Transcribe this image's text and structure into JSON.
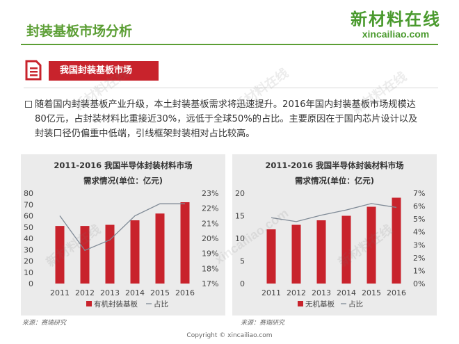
{
  "header": {
    "title": "封装基板市场分析",
    "logo_cn": "新材料在线",
    "logo_en": "xincailiao.com",
    "accent": "#5b9e34"
  },
  "section": {
    "title": "我国封装基板市场",
    "icon": "document-list-icon",
    "color": "#c8232c"
  },
  "paragraph": {
    "text": "随着国内封装基板产业升级，本土封装基板需求将迅速提升。2016年国内封装基板市场规模达",
    "lines": [
      "80亿元，占封装材料比重接近30%，远低于全球50%的占比。主要原因在于国内芯片设计以及",
      "封装口径仍偏重中低端，引线框架封装相对占比较高。"
    ]
  },
  "chart_data": [
    {
      "type": "bar",
      "title": "2011-2016 我国半导体封装材料市场",
      "subtitle": "需求情况(单位：亿元)",
      "categories": [
        "2011",
        "2012",
        "2013",
        "2014",
        "2015",
        "2016"
      ],
      "series": [
        {
          "name": "有机封装基板",
          "type": "bar",
          "axis": "left",
          "color": "#c8232c",
          "values": [
            51,
            51,
            52,
            56,
            62,
            72
          ]
        },
        {
          "name": "占比",
          "type": "line",
          "axis": "right",
          "color": "#7f8a96",
          "values": [
            21.5,
            19.2,
            19.9,
            21.5,
            22.3,
            22.3
          ]
        }
      ],
      "left_ticks": [
        "0",
        "10",
        "20",
        "30",
        "40",
        "50",
        "60",
        "70",
        "80"
      ],
      "right_ticks": [
        "17%",
        "18%",
        "19%",
        "20%",
        "21%",
        "22%",
        "23%"
      ],
      "ylim": [
        0,
        80
      ],
      "y2lim": [
        17,
        23
      ],
      "legend_position": "bottom",
      "legend_labels": [
        "有机封装基板",
        "占比"
      ]
    },
    {
      "type": "bar",
      "title": "2011-2016 我国半导体封装材料市场",
      "subtitle": "需求情况(单位：亿元)",
      "categories": [
        "2011",
        "2012",
        "2013",
        "2014",
        "2015",
        "2016"
      ],
      "series": [
        {
          "name": "无机基板",
          "type": "bar",
          "axis": "left",
          "color": "#c8232c",
          "values": [
            12,
            13,
            14,
            15,
            17,
            19
          ]
        },
        {
          "name": "占比",
          "type": "line",
          "axis": "right",
          "color": "#7f8a96",
          "values": [
            5.1,
            4.8,
            5.3,
            5.7,
            6.2,
            5.9
          ]
        }
      ],
      "left_ticks": [
        "0",
        "5",
        "10",
        "15",
        "20"
      ],
      "right_ticks": [
        "0%",
        "1%",
        "2%",
        "3%",
        "4%",
        "5%",
        "6%",
        "7%"
      ],
      "ylim": [
        0,
        20
      ],
      "y2lim": [
        0,
        7
      ],
      "legend_position": "bottom",
      "legend_labels": [
        "无机基板",
        "占比"
      ]
    }
  ],
  "sources": [
    "来源：赛瑞研究",
    "来源：赛瑞研究"
  ],
  "copyright": "Copyright © xincailiao.com",
  "watermarks": [
    "新材料在线",
    "xincailiao.com"
  ]
}
